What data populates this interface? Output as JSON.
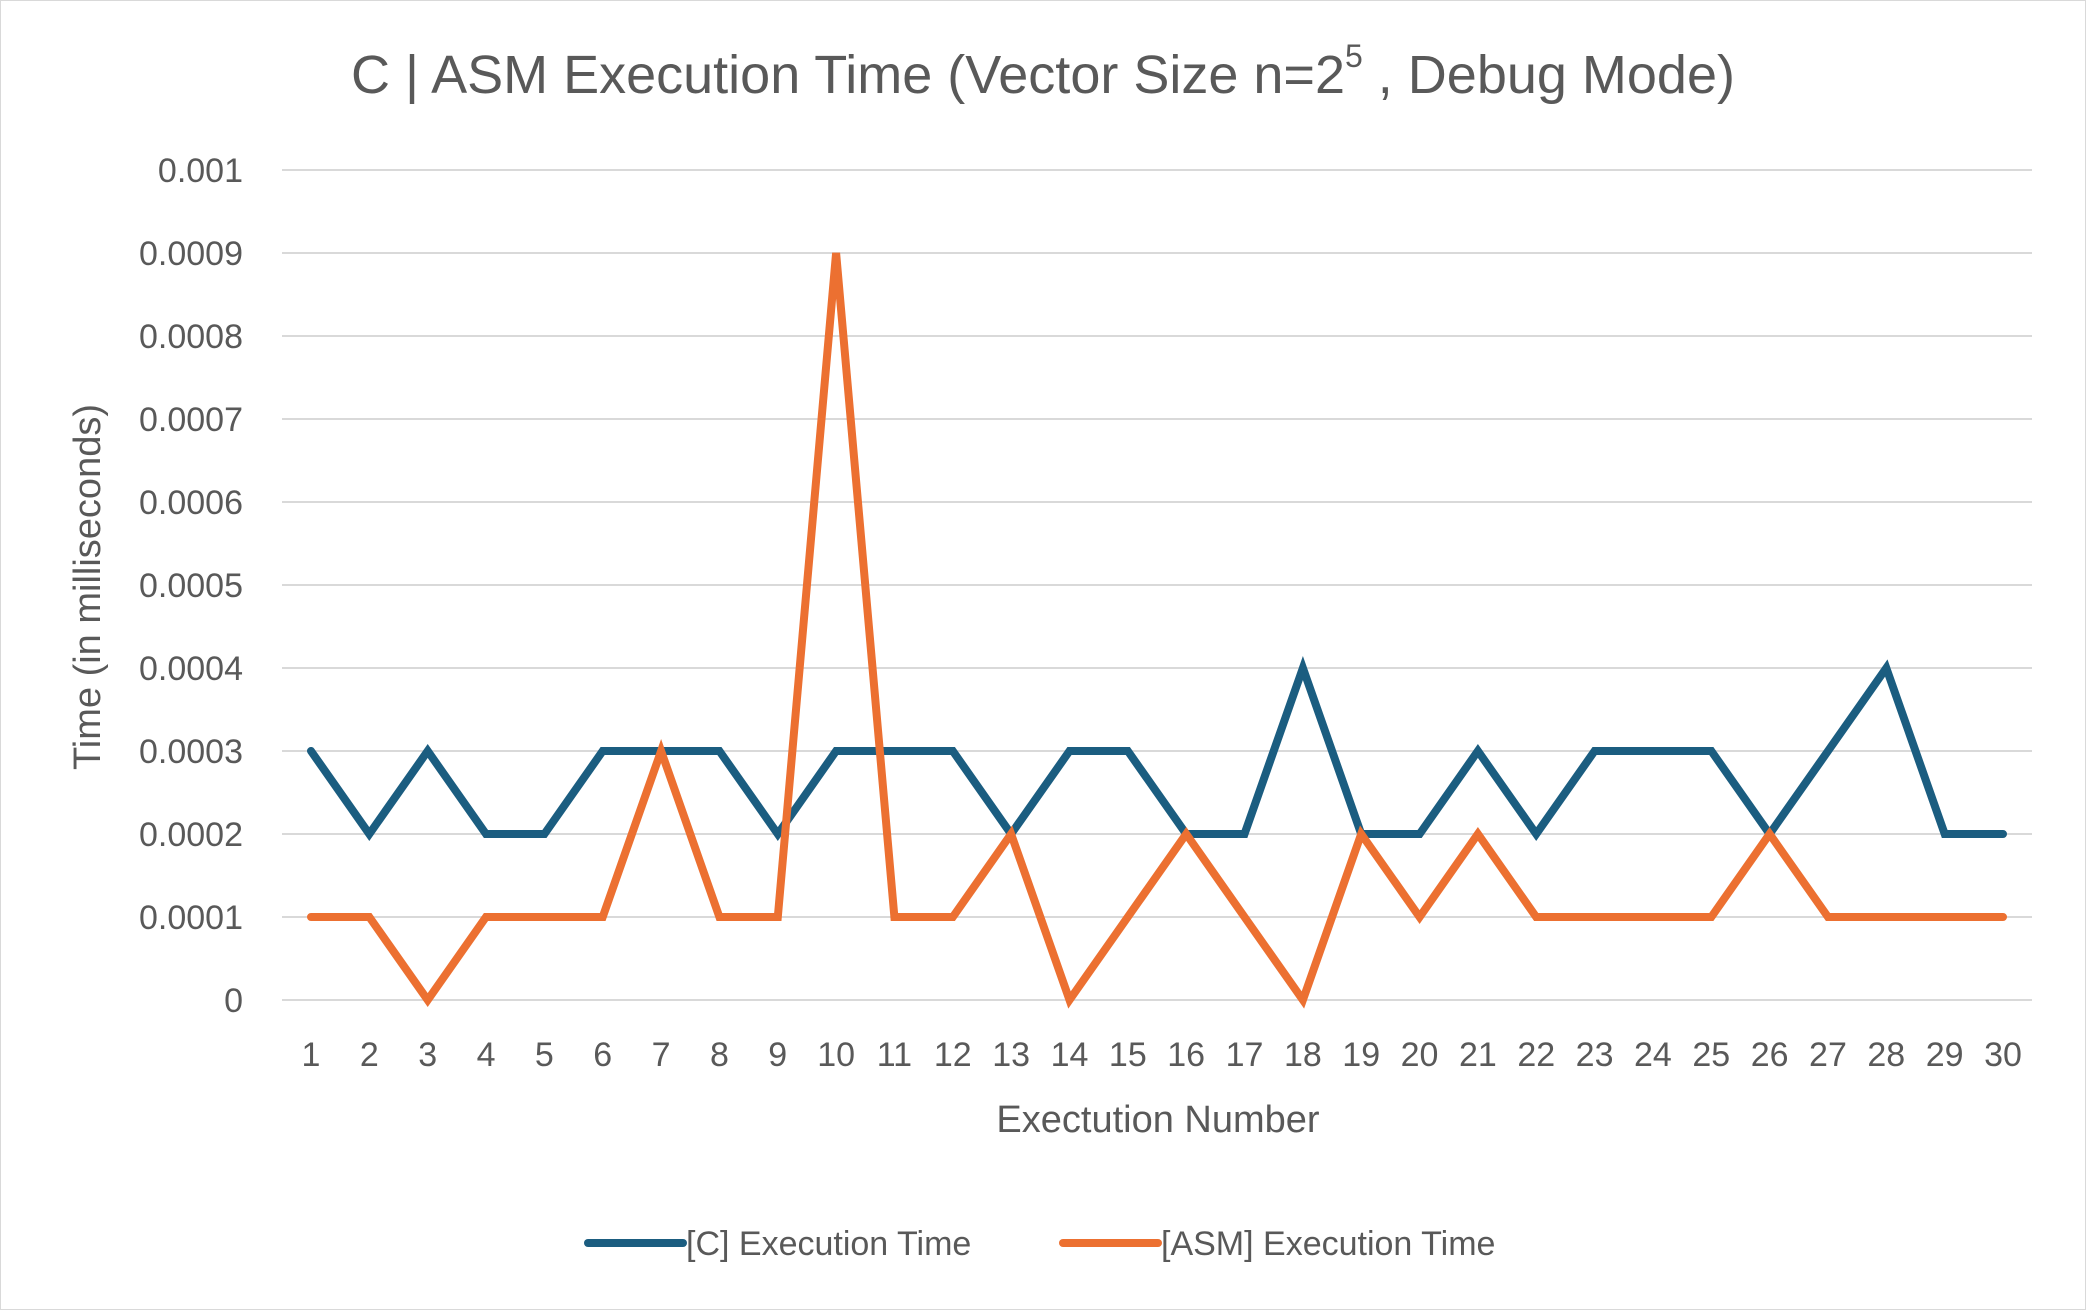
{
  "chart_data": {
    "type": "line",
    "title_prefix": "C | ASM Execution Time (Vector Size n=2",
    "title_superscript": "5",
    "title_suffix": " , Debug Mode)",
    "xlabel": "Exectution Number",
    "ylabel": "Time (in milliseconds)",
    "ylim": [
      0,
      0.001
    ],
    "yticks": [
      "0",
      "0.0001",
      "0.0002",
      "0.0003",
      "0.0004",
      "0.0005",
      "0.0006",
      "0.0007",
      "0.0008",
      "0.0009",
      "0.001"
    ],
    "categories": [
      "1",
      "2",
      "3",
      "4",
      "5",
      "6",
      "7",
      "8",
      "9",
      "10",
      "11",
      "12",
      "13",
      "14",
      "15",
      "16",
      "17",
      "18",
      "19",
      "20",
      "21",
      "22",
      "23",
      "24",
      "25",
      "26",
      "27",
      "28",
      "29",
      "30"
    ],
    "grid": true,
    "legend_position": "bottom",
    "series": [
      {
        "name": "[C] Execution Time",
        "color": "#1b5d80",
        "values": [
          0.0003,
          0.0002,
          0.0003,
          0.0002,
          0.0002,
          0.0003,
          0.0003,
          0.0003,
          0.0002,
          0.0003,
          0.0003,
          0.0003,
          0.0002,
          0.0003,
          0.0003,
          0.0002,
          0.0002,
          0.0004,
          0.0002,
          0.0002,
          0.0003,
          0.0002,
          0.0003,
          0.0003,
          0.0003,
          0.0002,
          0.0003,
          0.0004,
          0.0002,
          0.0002
        ]
      },
      {
        "name": "[ASM] Execution Time",
        "color": "#ec7031",
        "values": [
          0.0001,
          0.0001,
          0,
          0.0001,
          0.0001,
          0.0001,
          0.0003,
          0.0001,
          0.0001,
          0.0009,
          0.0001,
          0.0001,
          0.0002,
          0,
          0.0001,
          0.0002,
          0.0001,
          0,
          0.0002,
          0.0001,
          0.0002,
          0.0001,
          0.0001,
          0.0001,
          0.0001,
          0.0002,
          0.0001,
          0.0001,
          0.0001,
          0.0001
        ]
      }
    ]
  }
}
